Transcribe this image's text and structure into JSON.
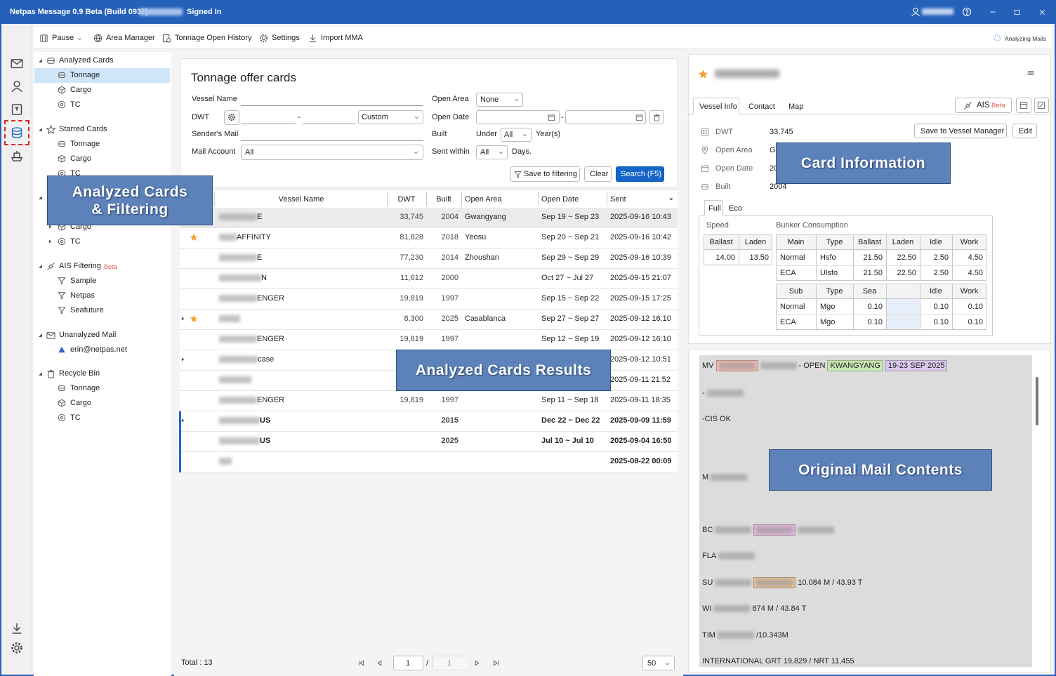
{
  "window": {
    "title": "Netpas Message 0.9 Beta (Build 0935) -",
    "status": "Signed In"
  },
  "toolbar": {
    "items": [
      "Pause",
      "Area Manager",
      "Tonnage Open History",
      "Settings",
      "Import MMA"
    ],
    "status": "Analyzing Mails"
  },
  "tree": [
    {
      "label": "Analyzed Cards",
      "children": [
        "Tonnage",
        "Cargo",
        "TC"
      ]
    },
    {
      "label": "Starred Cards",
      "children": [
        "Tonnage",
        "Cargo",
        "TC"
      ]
    },
    {
      "label": null,
      "children": [
        "Cargo",
        "TC"
      ]
    },
    {
      "label": "AIS Filtering",
      "badge": "Beta",
      "children": [
        "Sample",
        "Netpas",
        "Seafuture"
      ]
    },
    {
      "label": "Unanalyzed Mail",
      "children": [
        "erin@netpas.net"
      ]
    },
    {
      "label": "Recycle Bin",
      "children": [
        "Tonnage",
        "Cargo",
        "TC"
      ]
    }
  ],
  "search": {
    "title": "Tonnage offer cards",
    "vessel_name": "Vessel Name",
    "dwt": "DWT",
    "dash": "-",
    "dwt_mode": "Custom",
    "senders_mail": "Sender's Mail",
    "mail_account": "Mail Account",
    "mail_account_value": "All",
    "open_area": "Open Area",
    "open_area_value": "None",
    "open_date": "Open Date",
    "date_dash": "-",
    "built": "Built",
    "under": "Under",
    "built_value": "All",
    "years": "Year(s)",
    "sent_within": "Sent within",
    "sent_value": "All",
    "days": "Days.",
    "buttons": [
      "Save to filtering",
      "Clear",
      "Search (F5)"
    ]
  },
  "table": {
    "headers": [
      "Vessel Name",
      "DWT",
      "Built",
      "Open Area",
      "Open Date",
      "Sent"
    ],
    "rows": [
      {
        "selected": true,
        "star": false,
        "expand": false,
        "bold": false,
        "cells": [
          "E",
          "33,745",
          "2004",
          "Gwangyang",
          "Sep 19 ~ Sep 23",
          "2025-09-16 10:43"
        ]
      },
      {
        "selected": false,
        "star": true,
        "expand": false,
        "bold": false,
        "cells": [
          "AFFINITY",
          "81,828",
          "2018",
          "Yeosu",
          "Sep 20 ~ Sep 21",
          "2025-09-16 10:42"
        ]
      },
      {
        "selected": false,
        "star": false,
        "expand": false,
        "bold": false,
        "cells": [
          "E",
          "77,230",
          "2014",
          "Zhoushan",
          "Sep 29 ~ Sep 29",
          "2025-09-16 10:39"
        ]
      },
      {
        "selected": false,
        "star": false,
        "expand": false,
        "bold": false,
        "cells": [
          "N",
          "11,612",
          "2000",
          null,
          "Oct 27 ~ Jul 27",
          "2025-09-15 21:07"
        ]
      },
      {
        "selected": false,
        "star": false,
        "expand": false,
        "bold": false,
        "cells": [
          "ENGER",
          "19,819",
          "1997",
          null,
          "Sep 15 ~ Sep 22",
          "2025-09-15 17:25"
        ]
      },
      {
        "selected": false,
        "star": true,
        "expand": true,
        "bold": false,
        "cells": [
          null,
          "8,300",
          "2025",
          "Casablanca",
          "Sep 27 ~ Sep 27",
          "2025-09-12 16:10"
        ]
      },
      {
        "selected": false,
        "star": false,
        "expand": false,
        "bold": false,
        "cells": [
          "ENGER",
          "19,819",
          "1997",
          null,
          "Sep 12 ~ Sep 19",
          "2025-09-12 16:10"
        ]
      },
      {
        "selected": false,
        "star": false,
        "expand": true,
        "bold": false,
        "cells": [
          "case",
          null,
          null,
          null,
          null,
          "2025-09-12 10:51"
        ]
      },
      {
        "selected": false,
        "star": false,
        "expand": false,
        "bold": false,
        "cells": [
          null,
          null,
          null,
          null,
          null,
          "2025-09-11 21:52"
        ]
      },
      {
        "selected": false,
        "star": false,
        "expand": false,
        "bold": false,
        "cells": [
          "ENGER",
          "19,819",
          "1997",
          null,
          "Sep 11 ~ Sep 18",
          "2025-09-11 18:35"
        ]
      },
      {
        "selected": false,
        "star": false,
        "expand": true,
        "bold": true,
        "cells": [
          "US",
          null,
          "2015",
          null,
          "Dec 22 ~ Dec 22",
          "2025-09-09 11:59"
        ]
      },
      {
        "selected": false,
        "star": false,
        "expand": false,
        "bold": true,
        "cells": [
          "US",
          null,
          "2025",
          null,
          "Jul 10 ~ Jul 10",
          "2025-09-04 16:50"
        ]
      },
      {
        "selected": false,
        "star": false,
        "expand": false,
        "bold": true,
        "cells": [
          null,
          null,
          null,
          null,
          null,
          "2025-08-22 00:09"
        ]
      }
    ]
  },
  "pager": {
    "total": "Total : 13",
    "page": "1",
    "sep": "/",
    "pages": "1",
    "size": "50"
  },
  "card": {
    "tabs": [
      "Vessel Info",
      "Contact",
      "Map"
    ],
    "ais": "AIS",
    "ais_badge": "Beta",
    "fields": [
      {
        "label": "DWT",
        "value": "33,745"
      },
      {
        "label": "Open Area",
        "value": "G"
      },
      {
        "label": "Open Date",
        "value": "20"
      },
      {
        "label": "Built",
        "value": "2004"
      }
    ],
    "buttons": [
      "Save to Vessel Manager",
      "Edit"
    ],
    "subtabs": [
      "Full",
      "Eco"
    ],
    "speed_title": "Speed",
    "bunker_title": "Bunker Consumption",
    "speed": {
      "headers": [
        "Ballast",
        "Laden"
      ],
      "rows": [
        [
          "14.00",
          "13.50"
        ]
      ]
    },
    "main": {
      "headers": [
        "Main",
        "Type",
        "Ballast",
        "Laden",
        "Idle",
        "Work"
      ],
      "rows": [
        [
          "Normal",
          "Hsfo",
          "21.50",
          "22.50",
          "2.50",
          "4.50"
        ],
        [
          "ECA",
          "Ulsfo",
          "21.50",
          "22.50",
          "2.50",
          "4.50"
        ]
      ]
    },
    "sub": {
      "headers": [
        "Sub",
        "Type",
        "Sea",
        null,
        "Idle",
        "Work"
      ],
      "rows": [
        [
          "Normal",
          "Mgo",
          "0.10",
          null,
          "0.10",
          "0.10"
        ],
        [
          "ECA",
          "Mgo",
          "0.10",
          null,
          "0.10",
          "0.10"
        ]
      ]
    }
  },
  "mail": {
    "lines": [
      {
        "parts": [
          "MV",
          {
            "text": null,
            "highlight": "#f2b8b0"
          },
          null,
          "- OPEN",
          {
            "text": "KWANGYANG",
            "highlight": "#c9e7b5"
          },
          {
            "text": "19-23 SEP 2025",
            "highlight": "#d9c8ec"
          }
        ]
      },
      {
        "parts": [
          "-",
          null
        ]
      },
      {
        "parts": [
          "-CIS OK"
        ]
      },
      {
        "parts": [
          "M",
          null
        ]
      },
      {
        "parts": [
          "BC",
          null,
          {
            "text": null,
            "highlight": "#e3b5dd"
          },
          null
        ]
      },
      {
        "parts": [
          "FLA",
          null
        ]
      },
      {
        "parts": [
          "SU",
          null,
          {
            "text": null,
            "highlight": "#e8c09a"
          },
          "10.084 M / 43.93 T"
        ]
      },
      {
        "parts": [
          "WI",
          null,
          "874 M / 43.84 T"
        ]
      },
      {
        "parts": [
          "TIM",
          null,
          "/10.343M"
        ]
      },
      {
        "parts": [
          "INTERNATIONAL GRT 19,829 / NRT 11,455"
        ]
      }
    ]
  },
  "callouts": [
    {
      "lines": [
        "Analyzed Cards",
        "& Filtering"
      ]
    },
    {
      "lines": [
        "Card Information"
      ]
    },
    {
      "lines": [
        "Analyzed Cards Results"
      ]
    },
    {
      "lines": [
        "Original Mail Contents"
      ]
    }
  ]
}
